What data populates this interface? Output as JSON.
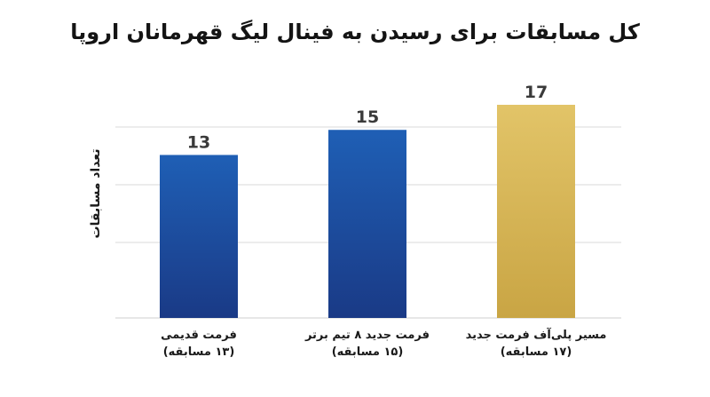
{
  "chart_data": {
    "type": "bar",
    "title": "کل مسابقات برای رسیدن به فینال لیگ قهرمانان اروپا",
    "ylabel": "تعداد مسابقات",
    "xlabel": "",
    "ylim": [
      0,
      17
    ],
    "grid": true,
    "categories": [
      {
        "name": "فرمت قدیمی",
        "sub": "(۱۳ مسابقه)"
      },
      {
        "name": "فرمت جدید ۸ تیم برتر",
        "sub": "(۱۵ مسابقه)"
      },
      {
        "name": "مسیر پلی‌آف فرمت جدید",
        "sub": "(۱۷ مسابقه)"
      }
    ],
    "values": [
      13,
      15,
      17
    ],
    "value_labels": [
      "13",
      "15",
      "17"
    ],
    "colors": {
      "bar_blue_top": "#1f5fb5",
      "bar_blue_bottom": "#1a3a86",
      "bar_gold_top": "#e2c468",
      "bar_gold_bottom": "#c9a544"
    }
  }
}
